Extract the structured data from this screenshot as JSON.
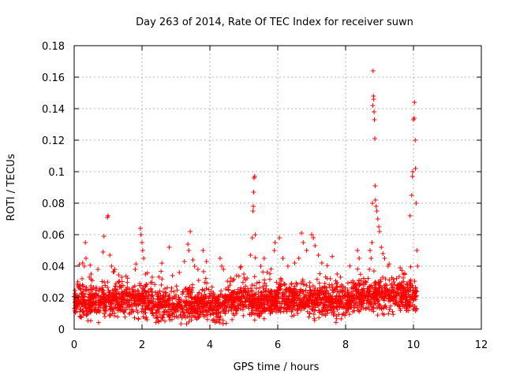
{
  "chart_data": {
    "type": "scatter",
    "title": "Day 263 of 2014, Rate Of TEC Index for receiver suwn",
    "xlabel": "GPS time / hours",
    "ylabel": "ROTI / TECUs",
    "xlim": [
      0,
      12
    ],
    "ylim": [
      0,
      0.18
    ],
    "xticks": [
      0,
      2,
      4,
      6,
      8,
      10,
      12
    ],
    "yticks": [
      0,
      0.02,
      0.04,
      0.06,
      0.08,
      0.1,
      0.12,
      0.14,
      0.16,
      0.18
    ],
    "xtick_labels": [
      "0",
      "2",
      "4",
      "6",
      "8",
      "10",
      "12"
    ],
    "ytick_labels": [
      "0",
      "0.02",
      "0.04",
      "0.06",
      "0.08",
      "0.1",
      "0.12",
      "0.14",
      "0.16",
      "0.18"
    ],
    "grid": true,
    "marker": "+",
    "color": "#ff0000",
    "series": [
      {
        "name": "ROTI",
        "points": [
          [
            0.15,
            0.041
          ],
          [
            0.25,
            0.042
          ],
          [
            0.3,
            0.04
          ],
          [
            0.35,
            0.045
          ],
          [
            0.33,
            0.055
          ],
          [
            0.45,
            0.033
          ],
          [
            0.5,
            0.035
          ],
          [
            0.7,
            0.038
          ],
          [
            0.85,
            0.049
          ],
          [
            0.88,
            0.059
          ],
          [
            0.98,
            0.071
          ],
          [
            1.0,
            0.072
          ],
          [
            1.05,
            0.047
          ],
          [
            1.1,
            0.04
          ],
          [
            1.2,
            0.038
          ],
          [
            1.4,
            0.033
          ],
          [
            1.8,
            0.038
          ],
          [
            1.95,
            0.064
          ],
          [
            1.97,
            0.06
          ],
          [
            2.0,
            0.055
          ],
          [
            2.02,
            0.05
          ],
          [
            2.05,
            0.045
          ],
          [
            2.1,
            0.035
          ],
          [
            2.3,
            0.033
          ],
          [
            2.8,
            0.052
          ],
          [
            3.1,
            0.036
          ],
          [
            3.25,
            0.043
          ],
          [
            3.35,
            0.054
          ],
          [
            3.38,
            0.05
          ],
          [
            3.42,
            0.062
          ],
          [
            3.5,
            0.044
          ],
          [
            3.55,
            0.04
          ],
          [
            3.65,
            0.038
          ],
          [
            3.8,
            0.05
          ],
          [
            3.9,
            0.043
          ],
          [
            4.3,
            0.045
          ],
          [
            4.35,
            0.04
          ],
          [
            4.4,
            0.038
          ],
          [
            4.9,
            0.039
          ],
          [
            5.0,
            0.035
          ],
          [
            5.2,
            0.047
          ],
          [
            5.25,
            0.058
          ],
          [
            5.27,
            0.075
          ],
          [
            5.28,
            0.078
          ],
          [
            5.29,
            0.087
          ],
          [
            5.3,
            0.096
          ],
          [
            5.32,
            0.097
          ],
          [
            5.34,
            0.06
          ],
          [
            5.5,
            0.04
          ],
          [
            5.6,
            0.045
          ],
          [
            5.9,
            0.05
          ],
          [
            5.92,
            0.055
          ],
          [
            6.05,
            0.058
          ],
          [
            6.15,
            0.045
          ],
          [
            6.3,
            0.04
          ],
          [
            6.5,
            0.042
          ],
          [
            6.62,
            0.045
          ],
          [
            6.7,
            0.061
          ],
          [
            6.75,
            0.055
          ],
          [
            6.85,
            0.05
          ],
          [
            7.0,
            0.06
          ],
          [
            7.05,
            0.058
          ],
          [
            7.1,
            0.053
          ],
          [
            7.2,
            0.047
          ],
          [
            7.3,
            0.042
          ],
          [
            7.55,
            0.032
          ],
          [
            7.75,
            0.035
          ],
          [
            7.85,
            0.033
          ],
          [
            8.35,
            0.05
          ],
          [
            8.4,
            0.045
          ],
          [
            8.7,
            0.038
          ],
          [
            8.72,
            0.05
          ],
          [
            8.75,
            0.045
          ],
          [
            8.78,
            0.055
          ],
          [
            8.79,
            0.08
          ],
          [
            8.8,
            0.142
          ],
          [
            8.81,
            0.164
          ],
          [
            8.82,
            0.148
          ],
          [
            8.83,
            0.146
          ],
          [
            8.84,
            0.138
          ],
          [
            8.85,
            0.133
          ],
          [
            8.86,
            0.121
          ],
          [
            8.87,
            0.091
          ],
          [
            8.88,
            0.082
          ],
          [
            8.9,
            0.078
          ],
          [
            8.92,
            0.075
          ],
          [
            8.95,
            0.07
          ],
          [
            8.98,
            0.065
          ],
          [
            9.0,
            0.062
          ],
          [
            9.05,
            0.052
          ],
          [
            9.1,
            0.048
          ],
          [
            9.15,
            0.045
          ],
          [
            9.25,
            0.04
          ],
          [
            9.7,
            0.035
          ],
          [
            9.9,
            0.072
          ],
          [
            9.95,
            0.085
          ],
          [
            9.97,
            0.097
          ],
          [
            9.98,
            0.1
          ],
          [
            10.0,
            0.133
          ],
          [
            10.02,
            0.134
          ],
          [
            10.03,
            0.144
          ],
          [
            10.05,
            0.12
          ],
          [
            10.06,
            0.102
          ],
          [
            10.08,
            0.08
          ],
          [
            10.1,
            0.05
          ],
          [
            10.12,
            0.04
          ]
        ]
      }
    ]
  }
}
